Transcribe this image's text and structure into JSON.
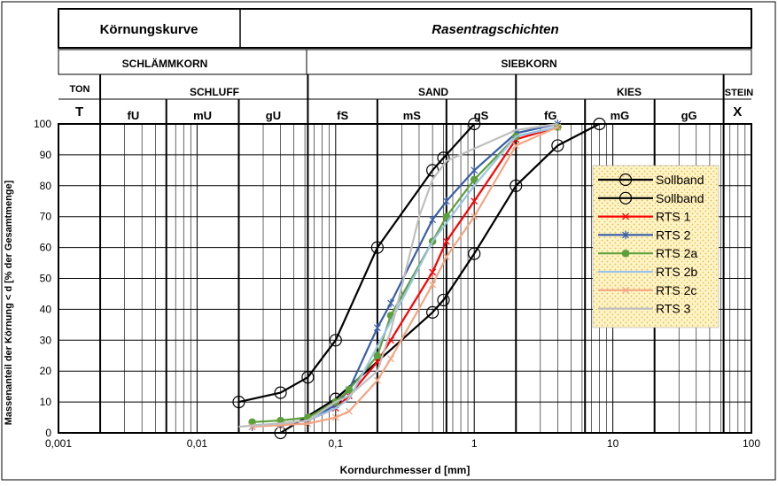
{
  "header": {
    "left_title": "Körnungskurve",
    "right_title": "Rasentragschichten",
    "group_fine": "SCHLÄMMKORN",
    "group_coarse": "SIEBKORN",
    "classes": [
      "TON",
      "SCHLUFF",
      "SAND",
      "KIES",
      "STEIN"
    ],
    "subclasses": [
      "T",
      "fU",
      "mU",
      "gU",
      "fS",
      "mS",
      "gS",
      "fG",
      "mG",
      "gG",
      "X"
    ]
  },
  "chart_data": {
    "type": "line",
    "xscale": "log",
    "xlim": [
      0.001,
      100
    ],
    "ylim": [
      0,
      100
    ],
    "grid": true,
    "legend_position": "right",
    "xlabel": "Korndurchmesser d [mm]",
    "ylabel": "Massenanteil der Körnung < d [% der Gesamtmenge]",
    "x_tick_labels": [
      "0,001",
      "0,01",
      "0,1",
      "1",
      "10",
      "100"
    ],
    "y_tick_labels": [
      "0",
      "10",
      "20",
      "30",
      "40",
      "50",
      "60",
      "70",
      "80",
      "90",
      "100"
    ],
    "series": [
      {
        "name": "Sollband",
        "color": "#000000",
        "marker": "circle-open",
        "x": [
          0.02,
          0.04,
          0.063,
          0.1,
          0.2,
          0.5,
          0.6,
          1.0
        ],
        "y": [
          10,
          13,
          18,
          30,
          60,
          85,
          89,
          100
        ]
      },
      {
        "name": "Sollband",
        "color": "#000000",
        "marker": "circle-open",
        "x": [
          0.04,
          0.1,
          0.5,
          0.6,
          1.0,
          2.0,
          4.0,
          8.0
        ],
        "y": [
          0,
          11,
          39,
          43,
          58,
          80,
          93,
          100
        ]
      },
      {
        "name": "RTS 1",
        "color": "#ff0000",
        "marker": "x",
        "x": [
          0.025,
          0.04,
          0.063,
          0.1,
          0.125,
          0.2,
          0.25,
          0.5,
          0.63,
          1.0,
          2.0,
          4.0
        ],
        "y": [
          2,
          3,
          4,
          8,
          12,
          23,
          30,
          52,
          62,
          75,
          95,
          99
        ]
      },
      {
        "name": "RTS 2",
        "color": "#3a5ea8",
        "marker": "star",
        "x": [
          0.025,
          0.04,
          0.063,
          0.1,
          0.125,
          0.2,
          0.25,
          0.5,
          0.63,
          1.0,
          2.0,
          4.0
        ],
        "y": [
          2,
          3,
          4,
          9,
          14,
          34,
          42,
          69,
          75,
          85,
          97,
          100
        ]
      },
      {
        "name": "RTS 2a",
        "color": "#5ca03c",
        "marker": "circle",
        "x": [
          0.025,
          0.04,
          0.063,
          0.1,
          0.125,
          0.2,
          0.25,
          0.5,
          0.63,
          1.0,
          2.0,
          4.0
        ],
        "y": [
          3.5,
          4,
          5,
          10,
          14,
          25,
          38,
          62,
          70,
          82,
          96,
          99
        ]
      },
      {
        "name": "RTS 2b",
        "color": "#9bc3e6",
        "marker": "line",
        "x": [
          0.025,
          0.04,
          0.063,
          0.1,
          0.125,
          0.2,
          0.25,
          0.5,
          0.63,
          1.0,
          2.0,
          4.0
        ],
        "y": [
          2.5,
          3,
          4,
          8,
          11,
          28,
          36,
          62,
          68,
          80,
          96,
          99
        ]
      },
      {
        "name": "RTS 2c",
        "color": "#f4a582",
        "marker": "x",
        "x": [
          0.025,
          0.04,
          0.063,
          0.1,
          0.125,
          0.2,
          0.25,
          0.5,
          0.63,
          1.0,
          2.0,
          4.0
        ],
        "y": [
          2,
          2.5,
          3,
          5,
          7,
          17,
          24,
          48,
          57,
          70,
          93,
          99
        ]
      },
      {
        "name": "RTS 3",
        "color": "#bfbfbf",
        "marker": "line",
        "x": [
          0.02,
          0.04,
          0.063,
          0.1,
          0.125,
          0.2,
          0.25,
          0.4,
          0.5,
          0.63,
          1.0,
          2.0,
          4.0
        ],
        "y": [
          2,
          3,
          4,
          10,
          12,
          20,
          33,
          70,
          82,
          88,
          92,
          98,
          100
        ]
      }
    ]
  }
}
